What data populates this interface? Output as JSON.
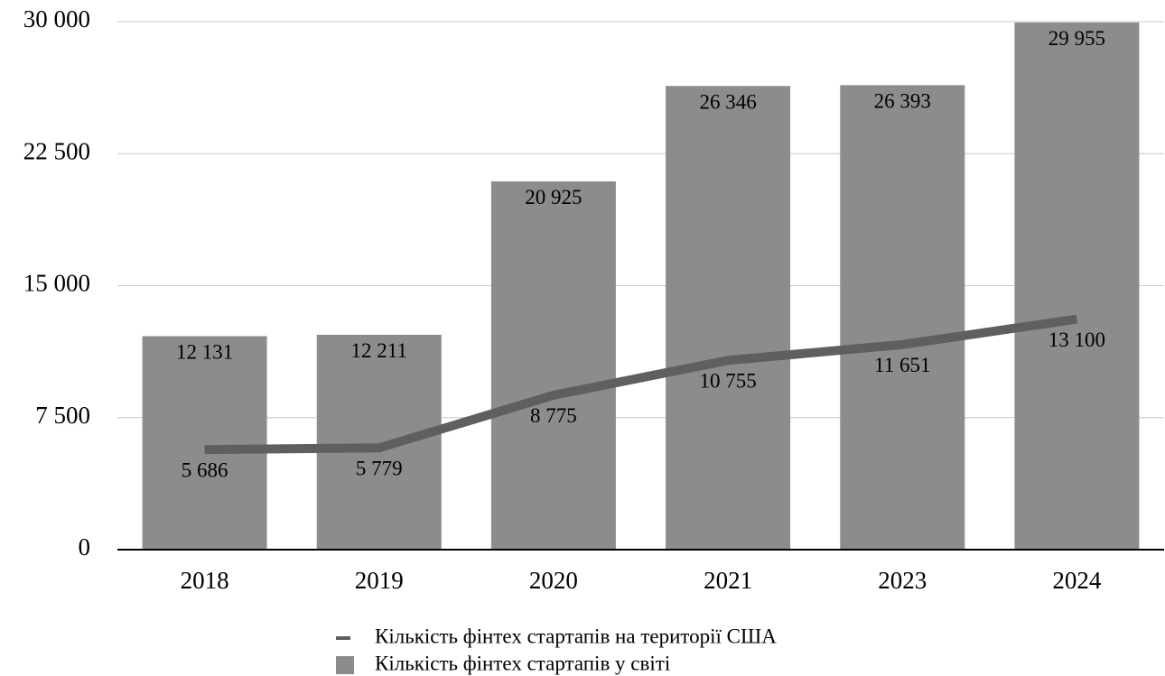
{
  "chart_data": {
    "type": "combo",
    "categories": [
      "2018",
      "2019",
      "2020",
      "2021",
      "2023",
      "2024"
    ],
    "series": [
      {
        "name": "Кількість фінтех стартапів на території США",
        "type": "line",
        "color": "#5f5f5f",
        "values": [
          5686,
          5779,
          8775,
          10755,
          11651,
          13100
        ],
        "value_labels": [
          "5 686",
          "5 779",
          "8 775",
          "10 755",
          "11 651",
          "13 100"
        ]
      },
      {
        "name": "Кількість фінтех стартапів у світі",
        "type": "bar",
        "color": "#8c8c8c",
        "values": [
          12131,
          12211,
          20925,
          26346,
          26393,
          29955
        ],
        "value_labels": [
          "12 131",
          "12 211",
          "20 925",
          "26 346",
          "26 393",
          "29 955"
        ]
      }
    ],
    "ylim": [
      0,
      30000
    ],
    "yticks": [
      0,
      {
        "value": 7500,
        "label": "7 500"
      },
      {
        "value": 15000,
        "label": "15 000"
      },
      {
        "value": 22500,
        "label": "22 500"
      },
      {
        "value": 30000,
        "label": "30 000"
      }
    ],
    "grid": true
  }
}
